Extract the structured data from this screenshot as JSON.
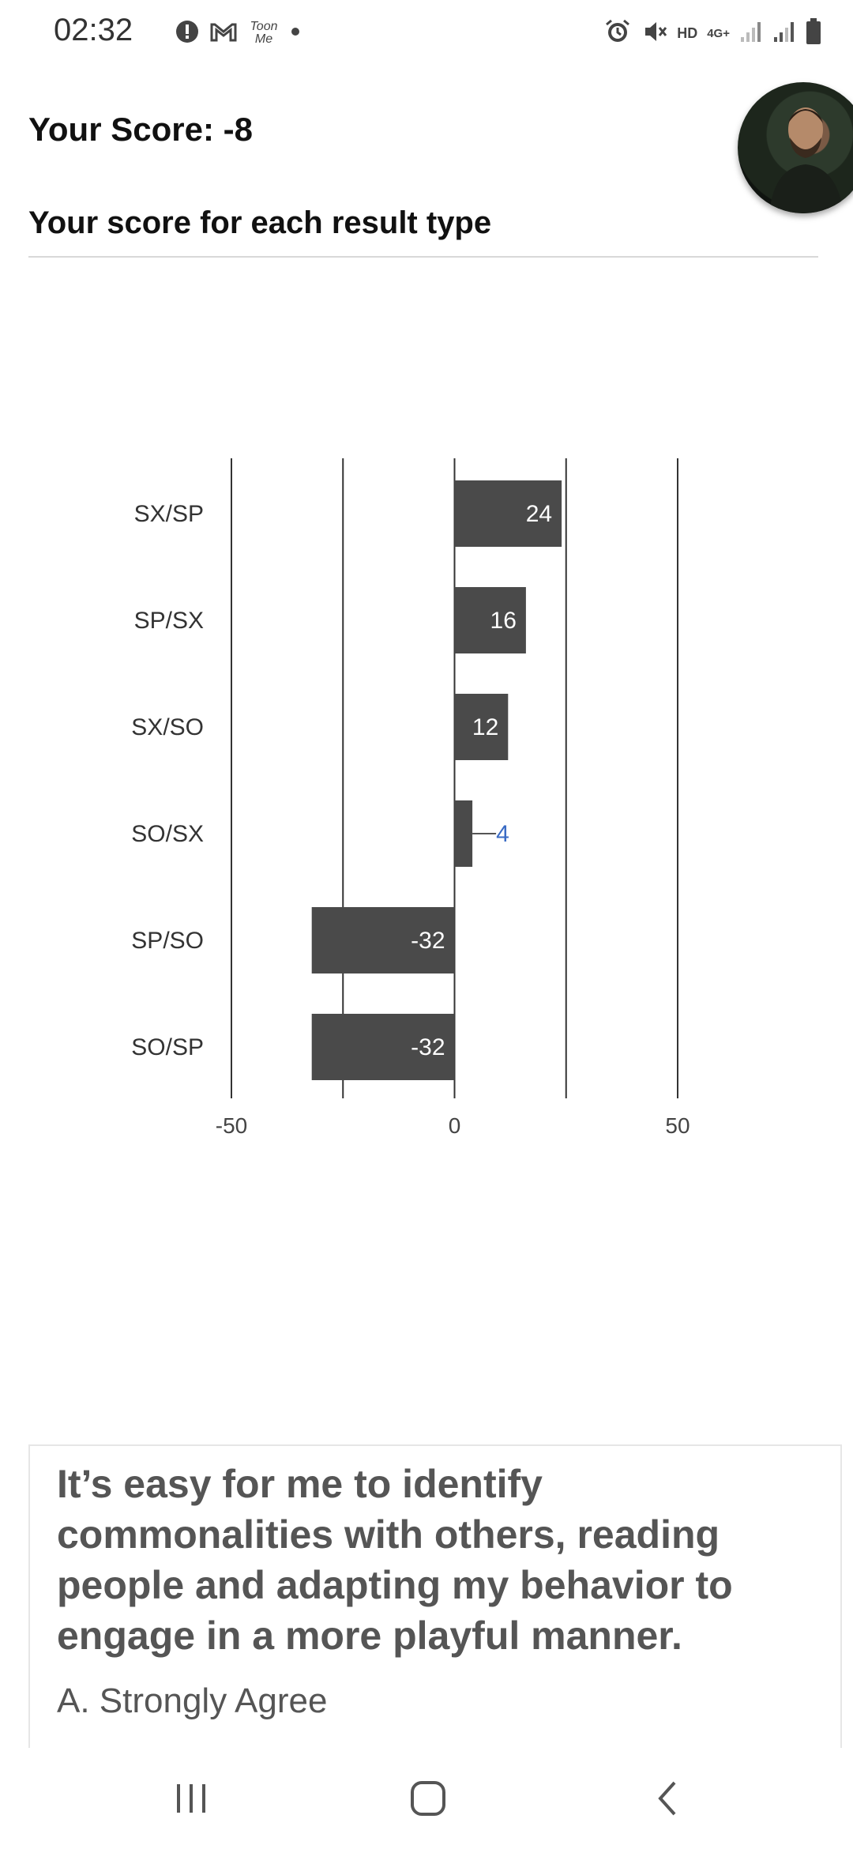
{
  "status_bar": {
    "time": "02:32",
    "left_icons": [
      "alert-icon",
      "gmail-icon",
      "toonme-icon",
      "dot-icon"
    ],
    "toonme_text": "Toon Me",
    "right_icons": [
      "alarm-icon",
      "mute-icon",
      "hd-icon",
      "4g-icon",
      "signal-icon",
      "signal-icon",
      "battery-icon"
    ],
    "hd_label": "HD",
    "network_label": "4G+"
  },
  "header": {
    "score_title": "Your Score: -8",
    "section_title": "Your score for each result type"
  },
  "chart_data": {
    "type": "bar",
    "orientation": "horizontal",
    "categories": [
      "SX/SP",
      "SP/SX",
      "SX/SO",
      "SO/SX",
      "SP/SO",
      "SO/SP"
    ],
    "values": [
      24,
      16,
      12,
      4,
      -32,
      -32
    ],
    "data_labels": [
      "24",
      "16",
      "12",
      "4",
      "-32",
      "-32"
    ],
    "xlim": [
      -50,
      50
    ],
    "x_ticks": [
      -50,
      0,
      50
    ],
    "x_tick_labels": [
      "-50",
      "0",
      "50"
    ],
    "gridlines": [
      -50,
      -25,
      0,
      25,
      50
    ],
    "grid": true,
    "bar_color": "#4a4a4a",
    "outside_label_color": "#3a6bc4",
    "title": "",
    "xlabel": "",
    "ylabel": ""
  },
  "question_card": {
    "question": "It’s easy for me to identify commonalities with others, reading people and adapting my behavior to engage in a more playful manner.",
    "answer": "A. Strongly Agree"
  },
  "nav_bar": {
    "icons": [
      "recents-icon",
      "home-icon",
      "back-icon"
    ]
  }
}
